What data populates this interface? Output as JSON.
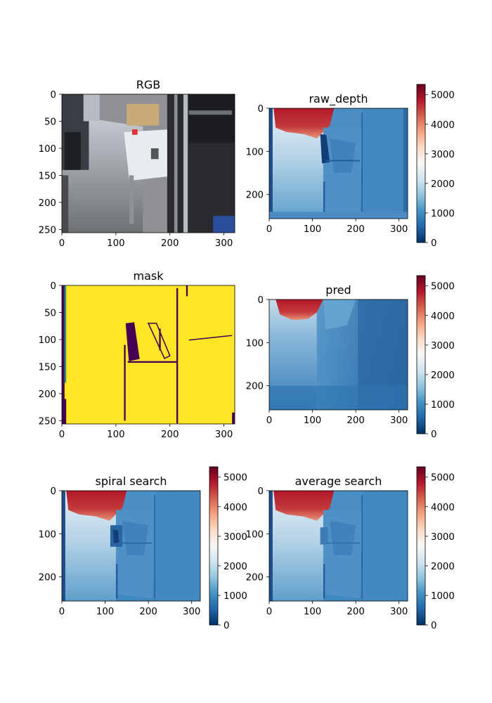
{
  "colors": {
    "colormap_stops": [
      "#053061",
      "#2166ac",
      "#4393c3",
      "#92c5de",
      "#d1e5f0",
      "#f7f7f7",
      "#fddbc7",
      "#f4a582",
      "#d6604d",
      "#b2182b",
      "#67001f"
    ],
    "mask_high": "#fde725",
    "mask_low": "#440154",
    "rgb_floor": "#8f9196",
    "rgb_dark": "#2a2b30",
    "rgb_table": "#e9ecef"
  },
  "chart_data": [
    {
      "type": "heatmap",
      "name": "rgb",
      "title": "RGB",
      "content": "rgb-image",
      "x_ticks": [
        "0",
        "100",
        "200",
        "300"
      ],
      "y_ticks": [
        "0",
        "50",
        "100",
        "150",
        "200",
        "250"
      ],
      "x_tick_values": [
        0,
        100,
        200,
        300
      ],
      "y_tick_values": [
        0,
        50,
        100,
        150,
        200,
        250
      ],
      "xlim": [
        0,
        320
      ],
      "ylim": [
        256,
        0
      ],
      "colorbar": null
    },
    {
      "type": "heatmap",
      "name": "raw-depth",
      "title": "raw_depth",
      "content": "raw-depth",
      "x_ticks": [
        "0",
        "100",
        "200",
        "300"
      ],
      "y_ticks": [
        "0",
        "100",
        "200"
      ],
      "x_tick_values": [
        0,
        100,
        200,
        300
      ],
      "y_tick_values": [
        0,
        100,
        200
      ],
      "xlim": [
        0,
        320
      ],
      "ylim": [
        256,
        0
      ],
      "colorbar": {
        "ticks": [
          "0",
          "1000",
          "2000",
          "3000",
          "4000",
          "5000"
        ],
        "values": [
          0,
          1000,
          2000,
          3000,
          4000,
          5000
        ],
        "range": [
          0,
          5350
        ]
      }
    },
    {
      "type": "heatmap",
      "name": "mask",
      "title": "mask",
      "content": "mask",
      "x_ticks": [
        "0",
        "100",
        "200",
        "300"
      ],
      "y_ticks": [
        "0",
        "50",
        "100",
        "150",
        "200",
        "250"
      ],
      "x_tick_values": [
        0,
        100,
        200,
        300
      ],
      "y_tick_values": [
        0,
        50,
        100,
        150,
        200,
        250
      ],
      "xlim": [
        0,
        320
      ],
      "ylim": [
        256,
        0
      ],
      "colorbar": null
    },
    {
      "type": "heatmap",
      "name": "pred",
      "title": "pred",
      "content": "pred",
      "x_ticks": [
        "0",
        "100",
        "200",
        "300"
      ],
      "y_ticks": [
        "0",
        "100",
        "200"
      ],
      "x_tick_values": [
        0,
        100,
        200,
        300
      ],
      "y_tick_values": [
        0,
        100,
        200
      ],
      "xlim": [
        0,
        320
      ],
      "ylim": [
        256,
        0
      ],
      "colorbar": {
        "ticks": [
          "0",
          "1000",
          "2000",
          "3000",
          "4000",
          "5000"
        ],
        "values": [
          0,
          1000,
          2000,
          3000,
          4000,
          5000
        ],
        "range": [
          0,
          5350
        ]
      }
    },
    {
      "type": "heatmap",
      "name": "spiral-search",
      "title": "spiral search",
      "content": "spiral",
      "x_ticks": [
        "0",
        "100",
        "200",
        "300"
      ],
      "y_ticks": [
        "0",
        "100",
        "200"
      ],
      "x_tick_values": [
        0,
        100,
        200,
        300
      ],
      "y_tick_values": [
        0,
        100,
        200
      ],
      "xlim": [
        0,
        320
      ],
      "ylim": [
        256,
        0
      ],
      "colorbar": {
        "ticks": [
          "0",
          "1000",
          "2000",
          "3000",
          "4000",
          "5000"
        ],
        "values": [
          0,
          1000,
          2000,
          3000,
          4000,
          5000
        ],
        "range": [
          0,
          5350
        ]
      }
    },
    {
      "type": "heatmap",
      "name": "average-search",
      "title": "average search",
      "content": "average",
      "x_ticks": [
        "0",
        "100",
        "200",
        "300"
      ],
      "y_ticks": [
        "0",
        "100",
        "200"
      ],
      "x_tick_values": [
        0,
        100,
        200,
        300
      ],
      "y_tick_values": [
        0,
        100,
        200
      ],
      "xlim": [
        0,
        320
      ],
      "ylim": [
        256,
        0
      ],
      "colorbar": {
        "ticks": [
          "0",
          "1000",
          "2000",
          "3000",
          "4000",
          "5000"
        ],
        "values": [
          0,
          1000,
          2000,
          3000,
          4000,
          5000
        ],
        "range": [
          0,
          5350
        ]
      }
    }
  ]
}
